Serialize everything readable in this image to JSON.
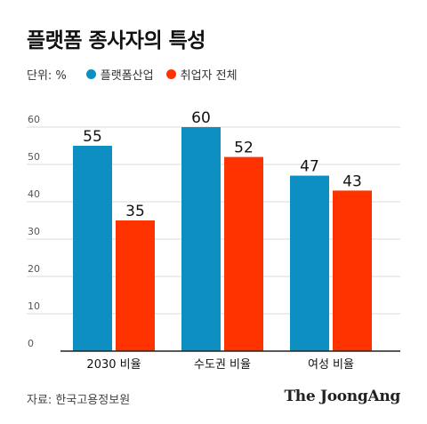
{
  "title": "플랫폼 종사자의 특성",
  "unit_label": "단위: %",
  "source": "자료: 한국고용정보원",
  "logo_text": "The JoongAng",
  "colors": {
    "series_1": "#0d8fc2",
    "series_2": "#ff3300",
    "grid": "#d9d9d9",
    "axis": "#222222",
    "tick": "#555555"
  },
  "chart_data": {
    "type": "bar",
    "categories": [
      "2030 비율",
      "수도권 비율",
      "여성 비율"
    ],
    "series": [
      {
        "name": "플랫폼산업",
        "values": [
          55,
          60,
          47
        ]
      },
      {
        "name": "취업자 전체",
        "values": [
          35,
          52,
          43
        ]
      }
    ],
    "ylim": [
      0,
      60
    ],
    "yticks": [
      0,
      10,
      20,
      30,
      40,
      50,
      60
    ],
    "grid": true,
    "legend_position": "top-left",
    "data_labels": true
  }
}
